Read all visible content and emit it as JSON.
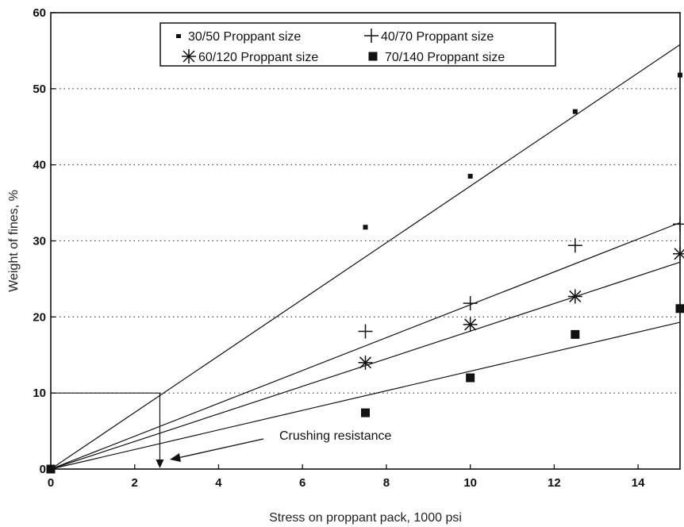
{
  "chart_data": {
    "type": "scatter",
    "xlabel": "Stress on proppant pack, 1000 psi",
    "ylabel": "Weight of fines, %",
    "xlim": [
      0,
      15
    ],
    "ylim": [
      0,
      60
    ],
    "xticks": [
      0,
      2,
      4,
      6,
      8,
      10,
      12,
      14
    ],
    "yticks": [
      0,
      10,
      20,
      30,
      40,
      50,
      60
    ],
    "grid": "horizontal dotted",
    "legend_position": "top-center",
    "series": [
      {
        "name": "30/50 Proppant size",
        "marker": "dot",
        "x": [
          0,
          7.5,
          10,
          12.5,
          15
        ],
        "y": [
          0,
          31.8,
          38.5,
          47,
          51.8
        ],
        "trend_end": [
          15,
          55.8
        ]
      },
      {
        "name": "40/70 Proppant size",
        "marker": "plus",
        "x": [
          0,
          7.5,
          10,
          12.5,
          15
        ],
        "y": [
          0,
          18.1,
          21.8,
          29.4,
          32.2
        ],
        "trend_end": [
          15,
          32.4
        ]
      },
      {
        "name": "60/120 Proppant size",
        "marker": "star",
        "x": [
          0,
          7.5,
          10,
          12.5,
          15
        ],
        "y": [
          0,
          14,
          19,
          22.7,
          28.3
        ],
        "trend_end": [
          15,
          27.2
        ]
      },
      {
        "name": "70/140 Proppant size",
        "marker": "square",
        "x": [
          0,
          7.5,
          10,
          12.5,
          15
        ],
        "y": [
          0,
          7.4,
          12,
          17.7,
          21.1
        ],
        "trend_end": [
          15,
          19.3
        ]
      }
    ],
    "annotation": {
      "text": "Crushing resistance",
      "guide_y": 10,
      "guide_x": 2.6
    }
  }
}
